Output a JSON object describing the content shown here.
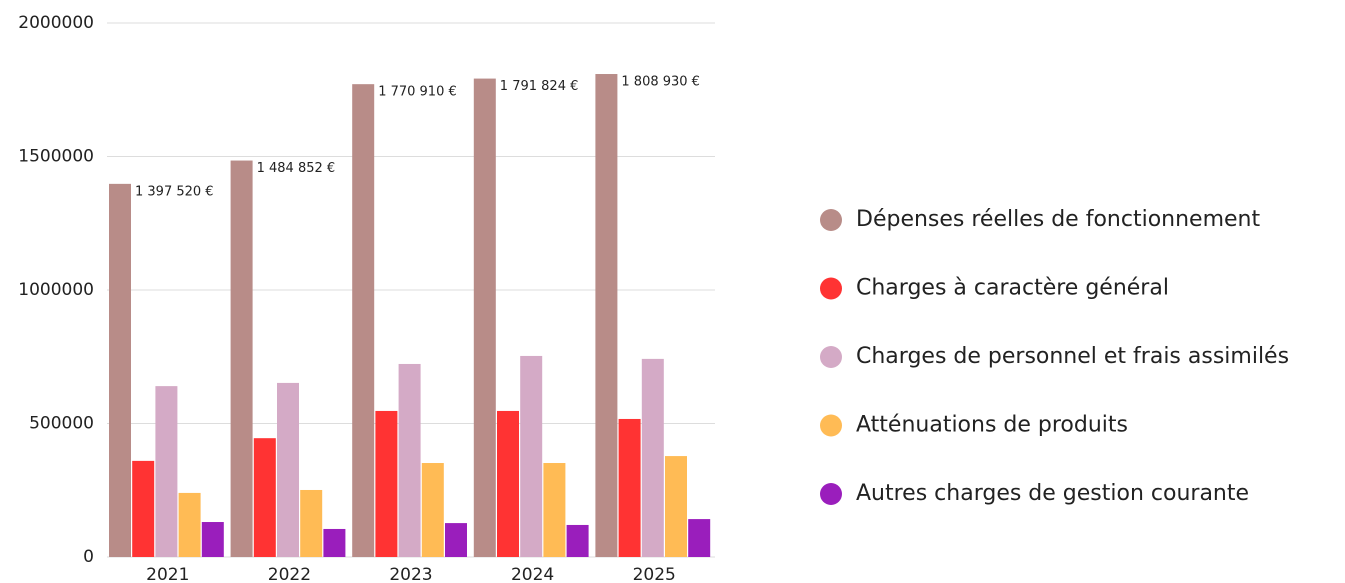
{
  "chart_data": {
    "type": "bar",
    "categories": [
      "2021",
      "2022",
      "2023",
      "2024",
      "2025"
    ],
    "series": [
      {
        "name": "Dépenses réelles de fonctionnement",
        "color": "#b88c88",
        "values": [
          1397520,
          1484852,
          1770910,
          1791824,
          1808930
        ],
        "value_labels": [
          "1 397 520 €",
          "1 484 852 €",
          "1 770 910 €",
          "1 791 824 €",
          "1 808 930 €"
        ]
      },
      {
        "name": "Charges à caractère général",
        "color": "#ff3333",
        "values": [
          360000,
          445000,
          547000,
          547000,
          517000
        ]
      },
      {
        "name": "Charges de personnel et frais assimilés",
        "color": "#d4aac6",
        "values": [
          640000,
          652000,
          723000,
          753000,
          742000
        ]
      },
      {
        "name": "Atténuations de produits",
        "color": "#ffbb55",
        "values": [
          240000,
          251000,
          352000,
          352000,
          378000
        ]
      },
      {
        "name": "Autres charges de gestion courante",
        "color": "#9a1ebc",
        "values": [
          131000,
          105000,
          127000,
          120000,
          142000
        ]
      }
    ],
    "ylim": [
      0,
      2000000
    ],
    "yticks": [
      0,
      500000,
      1000000,
      1500000,
      2000000
    ],
    "grid": true
  }
}
